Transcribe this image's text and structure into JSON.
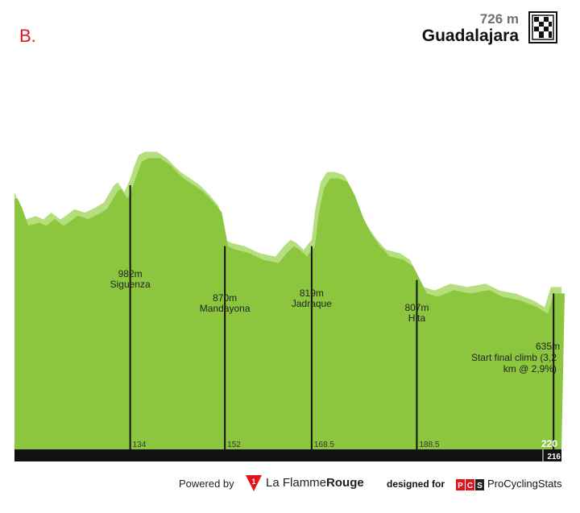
{
  "panel_label": "B.",
  "finish": {
    "altitude": "726 m",
    "name": "Guadalajara",
    "icon": "checkered-flag-icon"
  },
  "chart_data": {
    "type": "area",
    "title": "",
    "xlabel": "",
    "ylabel": "",
    "xlim": [
      112,
      216
    ],
    "ylim": [
      0,
      1100
    ],
    "total_distance_label": "216",
    "end_distance_label": "220",
    "profile": {
      "x": [
        112,
        112.9,
        114,
        116.1,
        117.5,
        119,
        120.7,
        121.7,
        123.4,
        125.4,
        127.4,
        129,
        130.9,
        131.6,
        132.9,
        134,
        134.6,
        135.6,
        136.8,
        139.1,
        141,
        142.2,
        143.6,
        145.5,
        147.3,
        149.2,
        150.8,
        152,
        153.3,
        155.9,
        158.6,
        161.6,
        163.2,
        164.5,
        165.6,
        167,
        168.5,
        169.2,
        170.2,
        171.4,
        173,
        174.7,
        176.1,
        177.8,
        179.1,
        180.9,
        182.7,
        185.3,
        187.2,
        188.5,
        189.8,
        191.9,
        194.9,
        198.1,
        201.6,
        204.2,
        207.4,
        210.7,
        212.8,
        214,
        216
      ],
      "elev": [
        760,
        730,
        680,
        690,
        680,
        700,
        680,
        690,
        710,
        700,
        715,
        730,
        780,
        790,
        760,
        800,
        830,
        870,
        880,
        880,
        860,
        840,
        820,
        800,
        780,
        750,
        720,
        620,
        610,
        600,
        580,
        570,
        600,
        620,
        610,
        590,
        620,
        710,
        790,
        820,
        820,
        810,
        770,
        700,
        660,
        620,
        590,
        580,
        560,
        520,
        480,
        470,
        490,
        480,
        490,
        470,
        460,
        440,
        420,
        480,
        480
      ]
    },
    "climbs": [
      {
        "altitude": "982m",
        "name": "Siguenza",
        "km": 134,
        "km_label": "134"
      },
      {
        "altitude": "870m",
        "name": "Mandayona",
        "km": 152,
        "km_label": "152"
      },
      {
        "altitude": "819m",
        "name": "Jadraque",
        "km": 168.5,
        "km_label": "168.5"
      },
      {
        "altitude": "807m",
        "name": "Hita",
        "km": 188.5,
        "km_label": "188.5"
      },
      {
        "altitude": "635m",
        "name": "Start final climb (3,2",
        "name2": "km @ 2,9%)",
        "km": 214.5,
        "km_label": ""
      }
    ],
    "colors": {
      "fill_dark": "#8cc63f",
      "fill_light": "#b5df7e",
      "axis_bar": "#111111",
      "marker_line": "#111111",
      "label_line": "#9a9a9a"
    }
  },
  "footer": {
    "powered_by": "Powered by",
    "flamme_prefix": "La Flamme",
    "flamme_suffix": "Rouge",
    "designed_for": "designed for",
    "pcs_badge": "PCS",
    "pcs_name": "ProCyclingStats"
  }
}
